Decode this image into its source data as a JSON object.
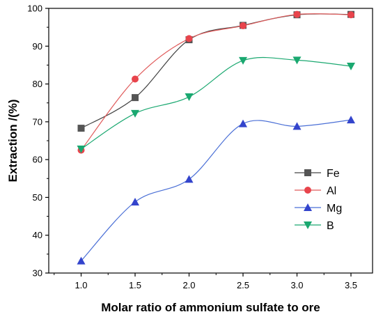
{
  "chart_data": {
    "type": "line",
    "title": "",
    "xlabel": "Molar ratio of ammonium sulfate to ore",
    "ylabel": "Extraction /(%)",
    "xlim": [
      0.7,
      3.7
    ],
    "ylim": [
      30,
      100
    ],
    "x_ticks": [
      "1.0",
      "1.5",
      "2.0",
      "2.5",
      "3.0",
      "3.5"
    ],
    "y_ticks": [
      "30",
      "40",
      "50",
      "60",
      "70",
      "80",
      "90",
      "100"
    ],
    "grid": false,
    "legend_position": "bottom-right",
    "x": [
      1.0,
      1.5,
      2.0,
      2.5,
      3.0,
      3.5
    ],
    "series": [
      {
        "name": "Fe",
        "marker": "square",
        "color": "#555555",
        "line_color": "#444444",
        "values": [
          68.3,
          76.4,
          91.7,
          95.5,
          98.3,
          98.4
        ]
      },
      {
        "name": "Al",
        "marker": "circle",
        "color": "#e8444c",
        "line_color": "#e05a5a",
        "values": [
          62.5,
          81.3,
          92.0,
          95.4,
          98.4,
          98.3
        ]
      },
      {
        "name": "Mg",
        "marker": "triangle-up",
        "color": "#3344cc",
        "line_color": "#4a6fd6",
        "values": [
          33.2,
          48.8,
          54.8,
          69.5,
          68.8,
          70.5
        ]
      },
      {
        "name": "B",
        "marker": "triangle-down",
        "color": "#1aa870",
        "line_color": "#1aa870",
        "values": [
          62.8,
          72.2,
          76.6,
          86.2,
          86.3,
          84.7
        ]
      }
    ]
  }
}
